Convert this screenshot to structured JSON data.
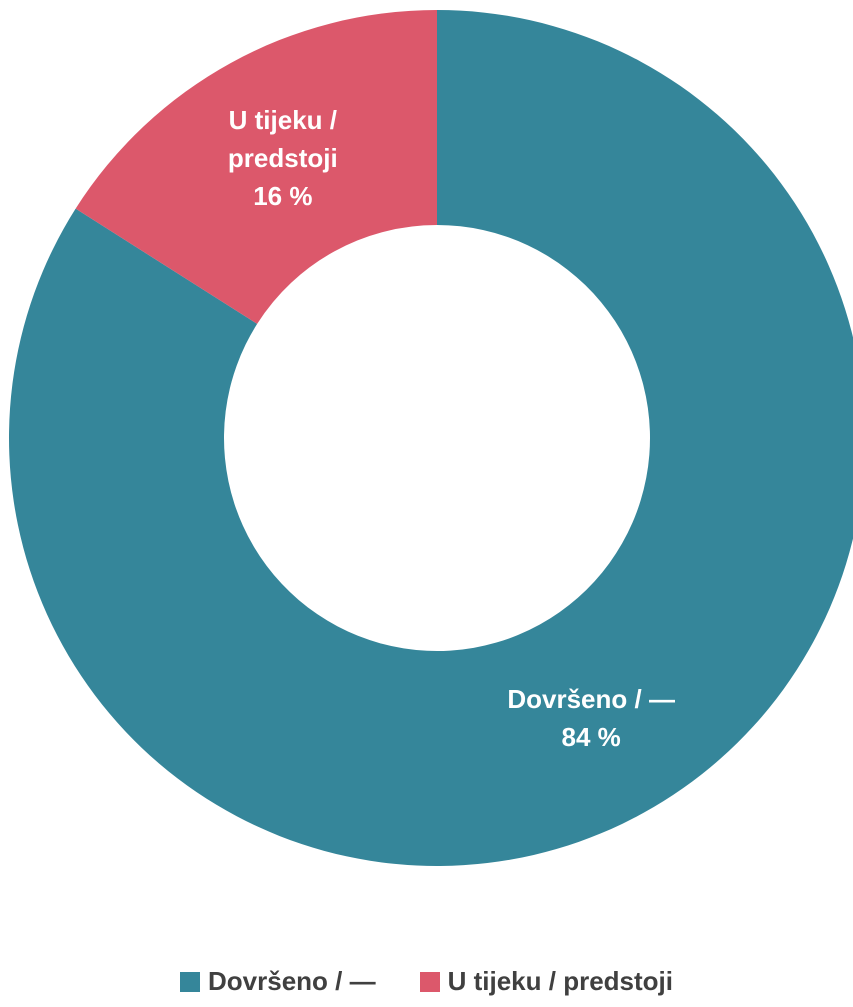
{
  "chart_data": {
    "type": "pie",
    "categories": [
      "Dovršeno / —",
      "U tijeku / predstoji"
    ],
    "values": [
      84,
      16
    ],
    "value_labels": [
      "84 %",
      "16 %"
    ],
    "colors": [
      "#35869a",
      "#dc586b"
    ],
    "donut": true,
    "legend": "bottom"
  }
}
